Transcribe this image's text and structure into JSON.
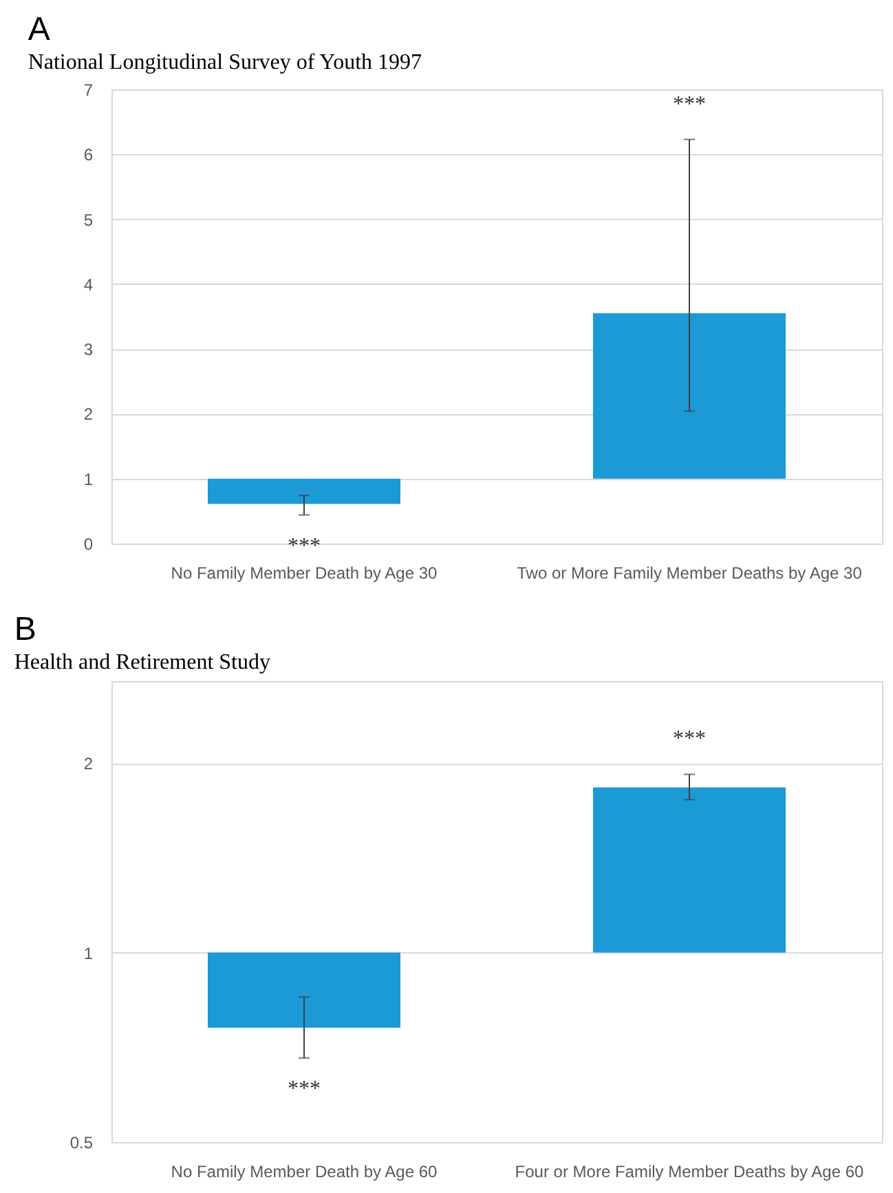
{
  "chart_data": [
    {
      "type": "bar",
      "title": "A",
      "subtitle": "National Longitudinal Survey of Youth 1997",
      "categories": [
        "No Family Member Death by Age 30",
        "Two or More Family Member Deaths by Age 30"
      ],
      "base": [
        1,
        1
      ],
      "values": [
        -0.39,
        2.55
      ],
      "errors": [
        [
          0.44,
          0.74
        ],
        [
          2.04,
          6.23
        ]
      ],
      "color": "#1b9ad6",
      "ylim": [
        0,
        7
      ],
      "yticks": [
        0,
        1,
        2,
        3,
        4,
        5,
        6,
        7
      ],
      "grid": "y",
      "annotations": [
        "***",
        "***"
      ]
    },
    {
      "type": "bar",
      "title": "B",
      "subtitle": "Health and Retirement Study",
      "categories": [
        "No Family Member Death by Age 60",
        "Four or More Family Member Deaths by Age 60"
      ],
      "base": [
        1,
        1
      ],
      "values": [
        -0.24,
        0.83
      ],
      "errors": [
        [
          0.68,
          0.85
        ],
        [
          1.75,
          1.92
        ]
      ],
      "color": "#1b9ad6",
      "ylim": [
        0.5,
        2.7
      ],
      "yticks": [
        0.5,
        1,
        2
      ],
      "grid": "y",
      "log": true,
      "annotations": [
        "***",
        "***"
      ]
    }
  ]
}
